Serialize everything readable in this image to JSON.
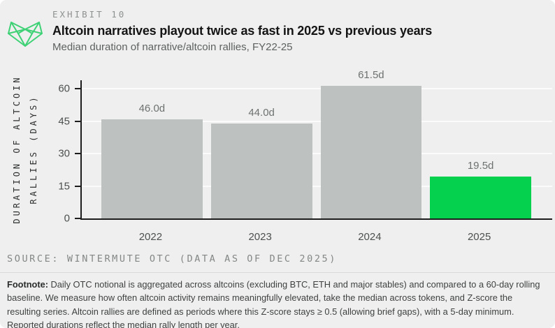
{
  "exhibit_label": "EXHIBIT 10",
  "title": "Altcoin narratives playout twice as fast in 2025 vs previous years",
  "subtitle": "Median duration of narrative/altcoin rallies, FY22-25",
  "source": "SOURCE: WINTERMUTE OTC (DATA AS OF DEC 2025)",
  "footnote": {
    "label": "Footnote:",
    "text": " Daily OTC notional is aggregated across altcoins (excluding BTC, ETH and major stables) and compared to a 60-day rolling baseline. We measure how often altcoin activity remains meaningfully elevated, take the median across tokens, and Z-score the resulting series. Altcoin rallies are defined as periods where this Z-score stays ≥ 0.5 (allowing brief gaps), with a 5-day minimum. Reported durations reflect the median rally length per year."
  },
  "icons": {
    "logo": "wintermute-logo"
  },
  "colors": {
    "background": "#efefef",
    "bar_gray": "#bdc1c0",
    "accent_green": "#05d14f",
    "logo_green": "#3fd175",
    "axis": "#1d1d1d",
    "gridline": "#fbfbfb"
  },
  "chart_data": {
    "type": "bar",
    "title": "Median duration of narrative/altcoin rallies, FY22-25",
    "categories": [
      "2022",
      "2023",
      "2024",
      "2025"
    ],
    "values": [
      46.0,
      44.0,
      61.5,
      19.5
    ],
    "value_labels": [
      "46.0d",
      "44.0d",
      "61.5d",
      "19.5d"
    ],
    "bar_colors": [
      "#bdc1c0",
      "#bdc1c0",
      "#bdc1c0",
      "#05d14f"
    ],
    "xlabel": "",
    "ylabel": "DURATION OF ALTCOIN RALLIES (DAYS)",
    "ylabel_lines": [
      "DURATION OF ALTCOIN",
      "RALLIES (DAYS)"
    ],
    "yticks": [
      0,
      15,
      30,
      45,
      60
    ],
    "ylim": [
      0,
      64
    ],
    "grid": true,
    "legend": false
  }
}
